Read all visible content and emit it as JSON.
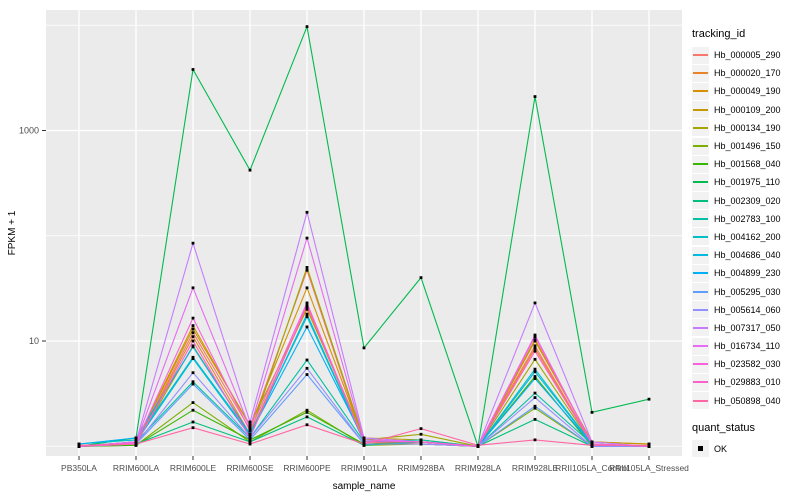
{
  "chart_data": {
    "type": "line",
    "title": "",
    "xlabel": "sample_name",
    "ylabel": "FPKM + 1",
    "y_scale": "log10",
    "y_ticks": [
      10,
      1000
    ],
    "y_tick_labels": [
      "10",
      "1000"
    ],
    "y_minor_gridlines": [
      1,
      100,
      10000
    ],
    "ylim": [
      0.95,
      12000
    ],
    "grid": true,
    "panel_bg": "#EBEBEB",
    "grid_color": "#FFFFFF",
    "point_color": "#000000",
    "point_shape": "square",
    "categories": [
      "PB350LA",
      "RRIM600LA",
      "RRIM600LE",
      "RRIM600SE",
      "RRIM600PE",
      "RRIM901LA",
      "RRIM928BA",
      "RRIM928LA",
      "RRIM928LE",
      "RRII105LA_Control",
      "RRII105LA_Stressed"
    ],
    "legend": {
      "title": "tracking_id",
      "position": "right"
    },
    "quant_status": {
      "title": "quant_status",
      "entries": [
        {
          "label": "OK",
          "marker": "black-square"
        }
      ]
    },
    "series": [
      {
        "name": "Hb_000005_290",
        "color": "#F8766D",
        "values": [
          1,
          1.05,
          12,
          1.45,
          47,
          1.1,
          1.05,
          1,
          9,
          1.05,
          1
        ]
      },
      {
        "name": "Hb_000020_170",
        "color": "#E9842C",
        "values": [
          1,
          1.05,
          11,
          1.3,
          21,
          1.1,
          1.05,
          1,
          8.5,
          1.05,
          1
        ]
      },
      {
        "name": "Hb_000049_190",
        "color": "#D69100",
        "values": [
          1,
          1.1,
          14,
          1.55,
          32,
          1.15,
          1.1,
          1,
          10,
          1.1,
          1.05
        ]
      },
      {
        "name": "Hb_000109_200",
        "color": "#C49A00",
        "values": [
          1,
          1.1,
          13,
          1.6,
          20,
          1.2,
          1.15,
          1,
          10.3,
          1.1,
          1.05
        ]
      },
      {
        "name": "Hb_000134_190",
        "color": "#A3A500",
        "values": [
          1,
          1.05,
          9,
          1.3,
          50,
          1.15,
          1.3,
          1,
          6.7,
          1.05,
          1
        ]
      },
      {
        "name": "Hb_001496_150",
        "color": "#7CAE00",
        "values": [
          1,
          1.02,
          2.6,
          1.1,
          2.2,
          1.02,
          1.05,
          1,
          2.3,
          1,
          1
        ]
      },
      {
        "name": "Hb_001568_040",
        "color": "#39B600",
        "values": [
          1,
          1.02,
          2.2,
          1.15,
          2.1,
          1.05,
          1.1,
          1,
          4.6,
          1,
          1
        ]
      },
      {
        "name": "Hb_001975_110",
        "color": "#00BB4E",
        "values": [
          1,
          1.2,
          3800,
          420,
          9700,
          8.6,
          40,
          1,
          2100,
          2.1,
          2.8
        ]
      },
      {
        "name": "Hb_002309_020",
        "color": "#00BF7D",
        "values": [
          1,
          1.05,
          1.7,
          1.1,
          1.9,
          1.02,
          1.1,
          1,
          1.8,
          1,
          1
        ]
      },
      {
        "name": "Hb_002783_100",
        "color": "#00C1A3",
        "values": [
          1,
          1.1,
          4.1,
          1.2,
          6.6,
          1.1,
          1.15,
          1,
          3.2,
          1.05,
          1
        ]
      },
      {
        "name": "Hb_004162_200",
        "color": "#00BFC4",
        "values": [
          1.05,
          1.15,
          7,
          1.3,
          17,
          1.1,
          1.1,
          1,
          5.4,
          1.05,
          1
        ]
      },
      {
        "name": "Hb_004686_040",
        "color": "#00BAE0",
        "values": [
          1,
          1.1,
          6.8,
          1.25,
          18,
          1.1,
          1.1,
          1,
          5.1,
          1.05,
          1
        ]
      },
      {
        "name": "Hb_004899_230",
        "color": "#00B0F6",
        "values": [
          1.05,
          1.2,
          8.8,
          1.3,
          13.6,
          1.15,
          1.1,
          1,
          4.4,
          1.05,
          1
        ]
      },
      {
        "name": "Hb_005295_030",
        "color": "#619CFF",
        "values": [
          1,
          1.05,
          3.9,
          1.15,
          4.8,
          1.05,
          1.05,
          1,
          2.4,
          1,
          1
        ]
      },
      {
        "name": "Hb_005614_060",
        "color": "#9590FF",
        "values": [
          1,
          1.05,
          5,
          1.2,
          5.5,
          1.05,
          1.05,
          1,
          2.9,
          1,
          1
        ]
      },
      {
        "name": "Hb_007317_050",
        "color": "#C77CFF",
        "values": [
          1,
          1.1,
          85,
          1.7,
          167,
          1.2,
          1.1,
          1,
          23,
          1.1,
          1
        ]
      },
      {
        "name": "Hb_016734_110",
        "color": "#E76BF3",
        "values": [
          1,
          1.1,
          32,
          1.5,
          95,
          1.15,
          1.1,
          1,
          11.4,
          1.05,
          1
        ]
      },
      {
        "name": "Hb_023582_030",
        "color": "#FA62DB",
        "values": [
          1,
          1.08,
          16.5,
          1.4,
          23,
          1.1,
          1.1,
          1,
          11,
          1.05,
          1
        ]
      },
      {
        "name": "Hb_029883_010",
        "color": "#FF61CC",
        "values": [
          1,
          1.05,
          10,
          1.2,
          22,
          1.1,
          1.1,
          1,
          8,
          1.05,
          1
        ]
      },
      {
        "name": "Hb_050898_040",
        "color": "#FF67A4",
        "values": [
          1.02,
          1.05,
          1.5,
          1.05,
          1.6,
          1.05,
          1.47,
          1.02,
          1.15,
          1.02,
          1.02
        ]
      }
    ]
  }
}
